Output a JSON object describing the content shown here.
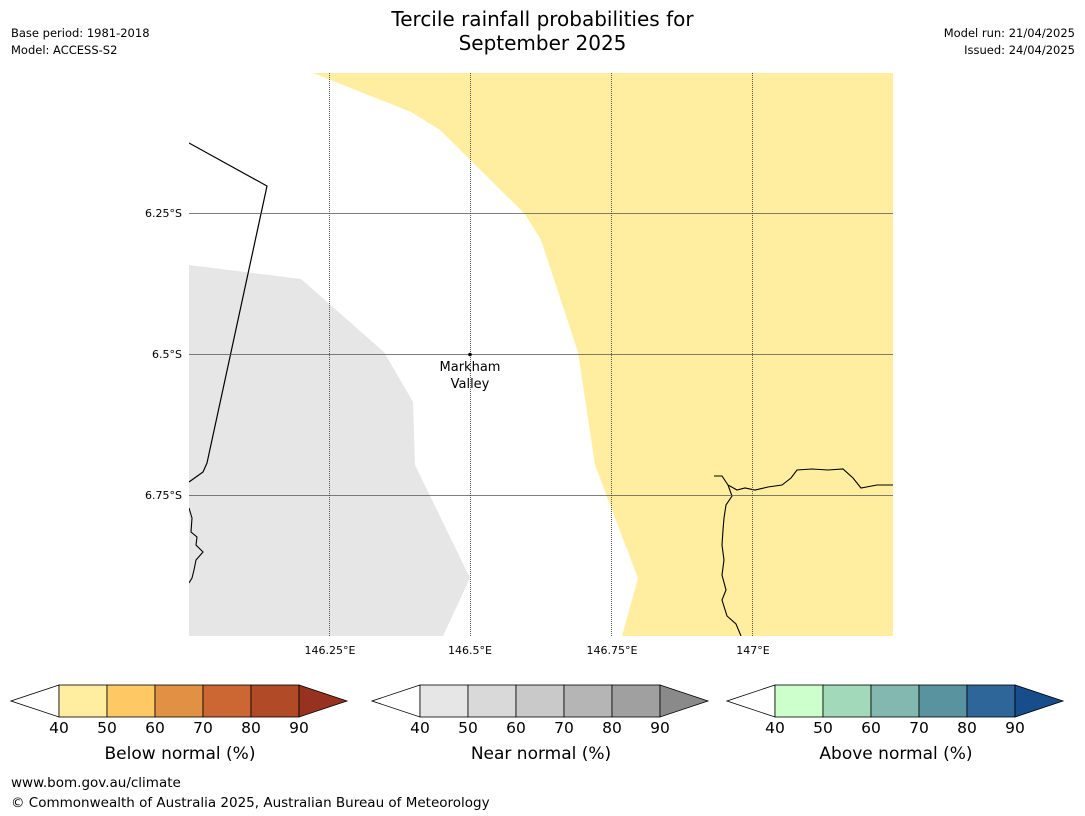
{
  "title": {
    "line1": "Tercile rainfall probabilities for",
    "line2": "September 2025"
  },
  "meta_left": {
    "base_period": "Base period: 1981-2018",
    "model": "Model: ACCESS-S2"
  },
  "meta_right": {
    "model_run": "Model run: 21/04/2025",
    "issued": "Issued: 24/04/2025"
  },
  "map": {
    "lat_labels": [
      "6.25°S",
      "6.5°S",
      "6.75°S"
    ],
    "lon_labels": [
      "146.25°E",
      "146.5°E",
      "146.75°E",
      "147°E"
    ],
    "place": {
      "line1": "Markham",
      "line2": "Valley"
    },
    "region_colors": {
      "below_normal": "#ffeda0",
      "near_normal": "#e6e6e6",
      "background": "#ffffff"
    }
  },
  "colorbars": [
    {
      "name": "below",
      "label": "Below normal (%)",
      "ticks": [
        "40",
        "50",
        "60",
        "70",
        "80",
        "90"
      ],
      "colors": [
        "#ffeda0",
        "#fec965",
        "#e09144",
        "#cc6633",
        "#b04a27",
        "#973220"
      ]
    },
    {
      "name": "near",
      "label": "Near normal (%)",
      "ticks": [
        "40",
        "50",
        "60",
        "70",
        "80",
        "90"
      ],
      "colors": [
        "#e6e6e6",
        "#d9d9d9",
        "#c9c9c9",
        "#b5b5b5",
        "#a0a0a0",
        "#8a8a8a"
      ]
    },
    {
      "name": "above",
      "label": "Above normal (%)",
      "ticks": [
        "40",
        "50",
        "60",
        "70",
        "80",
        "90"
      ],
      "colors": [
        "#ccffcc",
        "#a3d9bb",
        "#82b8b0",
        "#5a93a0",
        "#2e6699",
        "#164d8a"
      ]
    }
  ],
  "footer": {
    "url": "www.bom.gov.au/climate",
    "copyright": "© Commonwealth of Australia 2025, Australian Bureau of Meteorology"
  }
}
